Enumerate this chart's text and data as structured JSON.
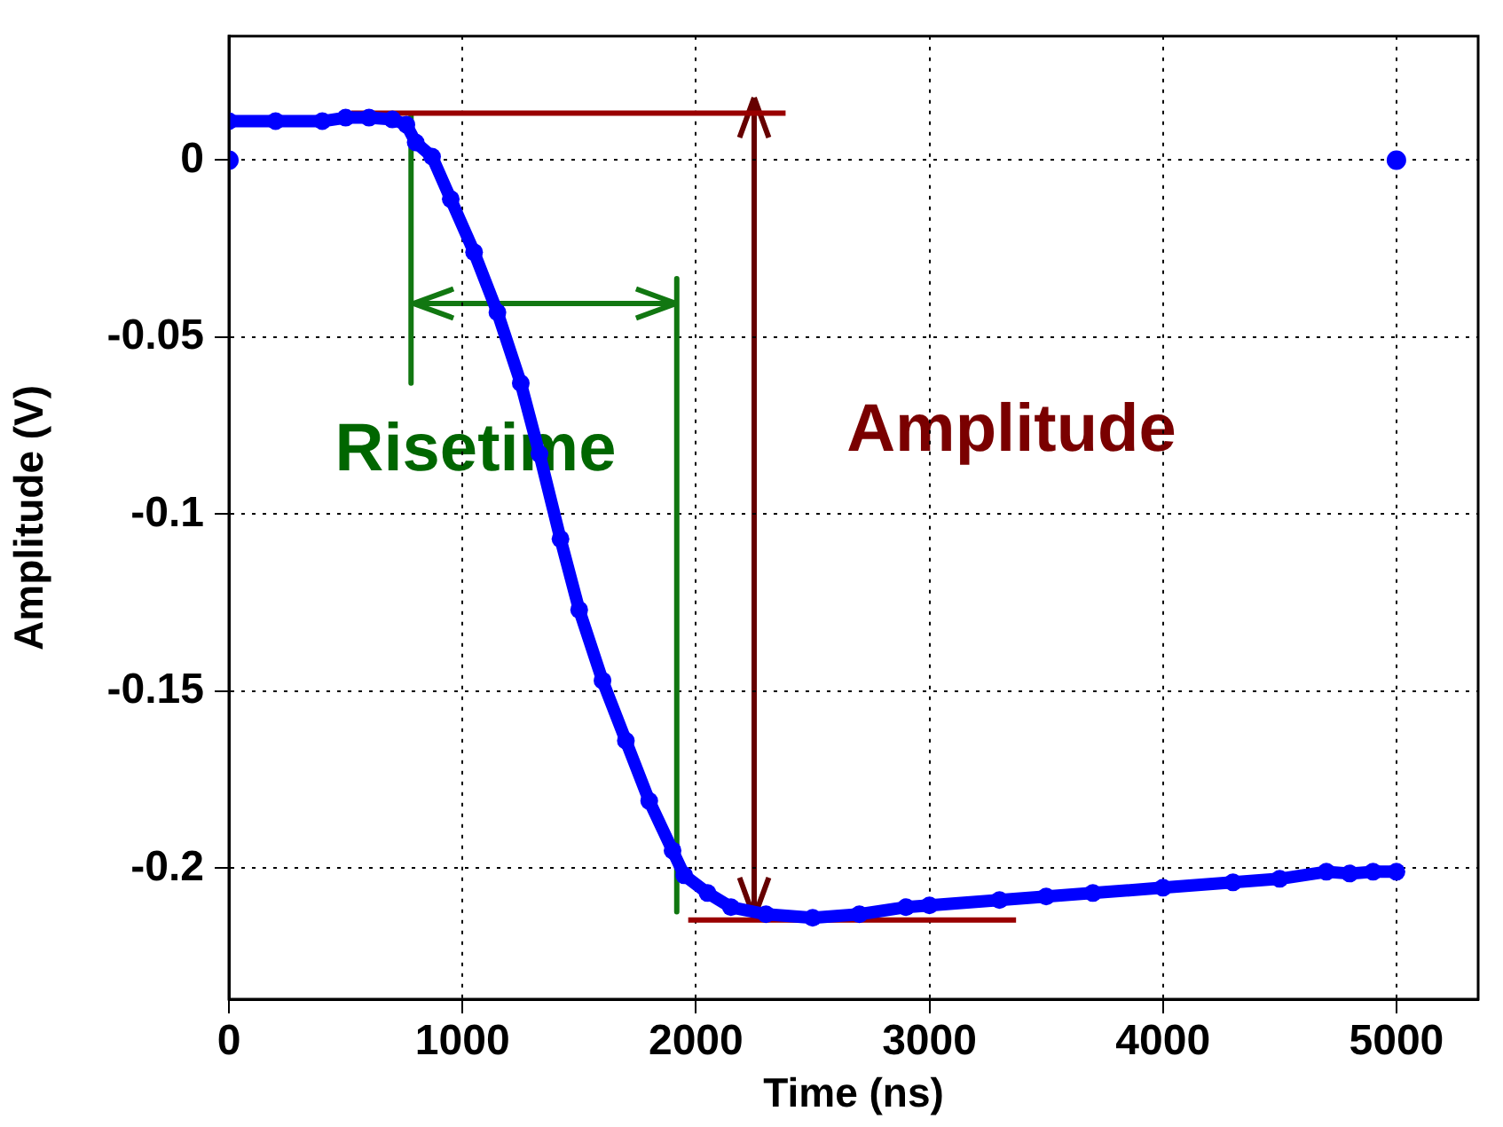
{
  "chart_data": {
    "type": "line",
    "xlabel": "Time (ns)",
    "ylabel": "Amplitude (V)",
    "xlim": [
      0,
      5350
    ],
    "ylim": [
      -0.237,
      0.035
    ],
    "xticks": [
      0,
      1000,
      2000,
      3000,
      4000,
      5000
    ],
    "yticks": [
      -0.2,
      -0.15,
      -0.1,
      -0.05,
      0
    ],
    "grid": true,
    "legend": false,
    "marker": "circle",
    "series": [
      {
        "color": "#0000ff",
        "x": [
          0,
          200,
          400,
          500,
          600,
          700,
          760,
          800,
          870,
          950,
          1050,
          1150,
          1250,
          1330,
          1420,
          1500,
          1600,
          1700,
          1800,
          1900,
          1950,
          2050,
          2150,
          2300,
          2500,
          2700,
          2900,
          3000,
          3300,
          3500,
          3700,
          4000,
          4300,
          4500,
          4700,
          4800,
          4900,
          5000
        ],
        "values": [
          0.011,
          0.011,
          0.011,
          0.012,
          0.012,
          0.0115,
          0.01,
          0.005,
          0.001,
          -0.011,
          -0.026,
          -0.043,
          -0.063,
          -0.083,
          -0.107,
          -0.127,
          -0.147,
          -0.164,
          -0.181,
          -0.195,
          -0.202,
          -0.207,
          -0.211,
          -0.213,
          -0.214,
          -0.213,
          -0.211,
          -0.2105,
          -0.209,
          -0.208,
          -0.207,
          -0.2055,
          -0.204,
          -0.203,
          -0.201,
          -0.2015,
          -0.201,
          -0.201
        ]
      },
      {
        "type": "scatter",
        "color": "#0000ff",
        "x": [
          0,
          5000
        ],
        "values": [
          0,
          0
        ]
      },
      {
        "type": "line",
        "marker": "none",
        "color": "#990000",
        "x": [
          524,
          2384
        ],
        "values": [
          0.0133,
          0.0133
        ]
      },
      {
        "type": "line",
        "marker": "none",
        "color": "#990000",
        "x": [
          1967,
          3371
        ],
        "values": [
          -0.2146,
          -0.2146
        ]
      },
      {
        "type": "line",
        "marker": "none",
        "color": "#117711",
        "x": [
          780,
          780
        ],
        "values": [
          0.0128,
          -0.063
        ]
      },
      {
        "type": "line",
        "marker": "none",
        "color": "#117711",
        "x": [
          1918,
          1918
        ],
        "values": [
          -0.0335,
          -0.2123
        ]
      }
    ],
    "annotations": [
      "Risetime",
      "Amplitude"
    ]
  }
}
